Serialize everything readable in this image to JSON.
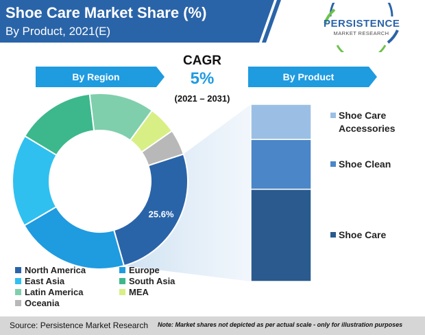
{
  "header": {
    "title": "Shoe Care Market Share (%)",
    "subtitle": "By Product, 2021(E)"
  },
  "logo": {
    "line1": "PERSISTENCE",
    "line2": "MARKET RESEARCH"
  },
  "cagr": {
    "label": "CAGR",
    "value": "5%",
    "period": "(2021 – 2031)"
  },
  "tabs": {
    "region": "By Region",
    "product": "By Product"
  },
  "chart_data": [
    {
      "type": "pie",
      "variant": "donut",
      "title": "By Region",
      "categories": [
        "North America",
        "Europe",
        "East Asia",
        "South Asia",
        "Latin America",
        "MEA",
        "Oceania"
      ],
      "values": [
        25.6,
        21.0,
        17.0,
        14.5,
        12.0,
        5.2,
        4.7
      ],
      "colors": [
        "#2a64a8",
        "#1f9be0",
        "#2fc0f0",
        "#3cb88c",
        "#7fcfac",
        "#d8ef86",
        "#b8b8b8"
      ],
      "data_labels": [
        "25.6%",
        "",
        "",
        "",
        "",
        "",
        ""
      ],
      "legend": "bottom-left"
    },
    {
      "type": "bar",
      "variant": "stacked-100",
      "title": "By Product",
      "categories": [
        "Shoe Care",
        "Shoe Clean",
        "Shoe Care Accessories"
      ],
      "values": [
        50,
        27,
        19
      ],
      "colors": [
        "#2a5a8e",
        "#4a86c8",
        "#9bbfe4"
      ],
      "legend": "right"
    }
  ],
  "footer": {
    "source": "Source: Persistence Market Research",
    "note": "Note: Market shares not depicted as per actual scale - only for illustration purposes"
  }
}
